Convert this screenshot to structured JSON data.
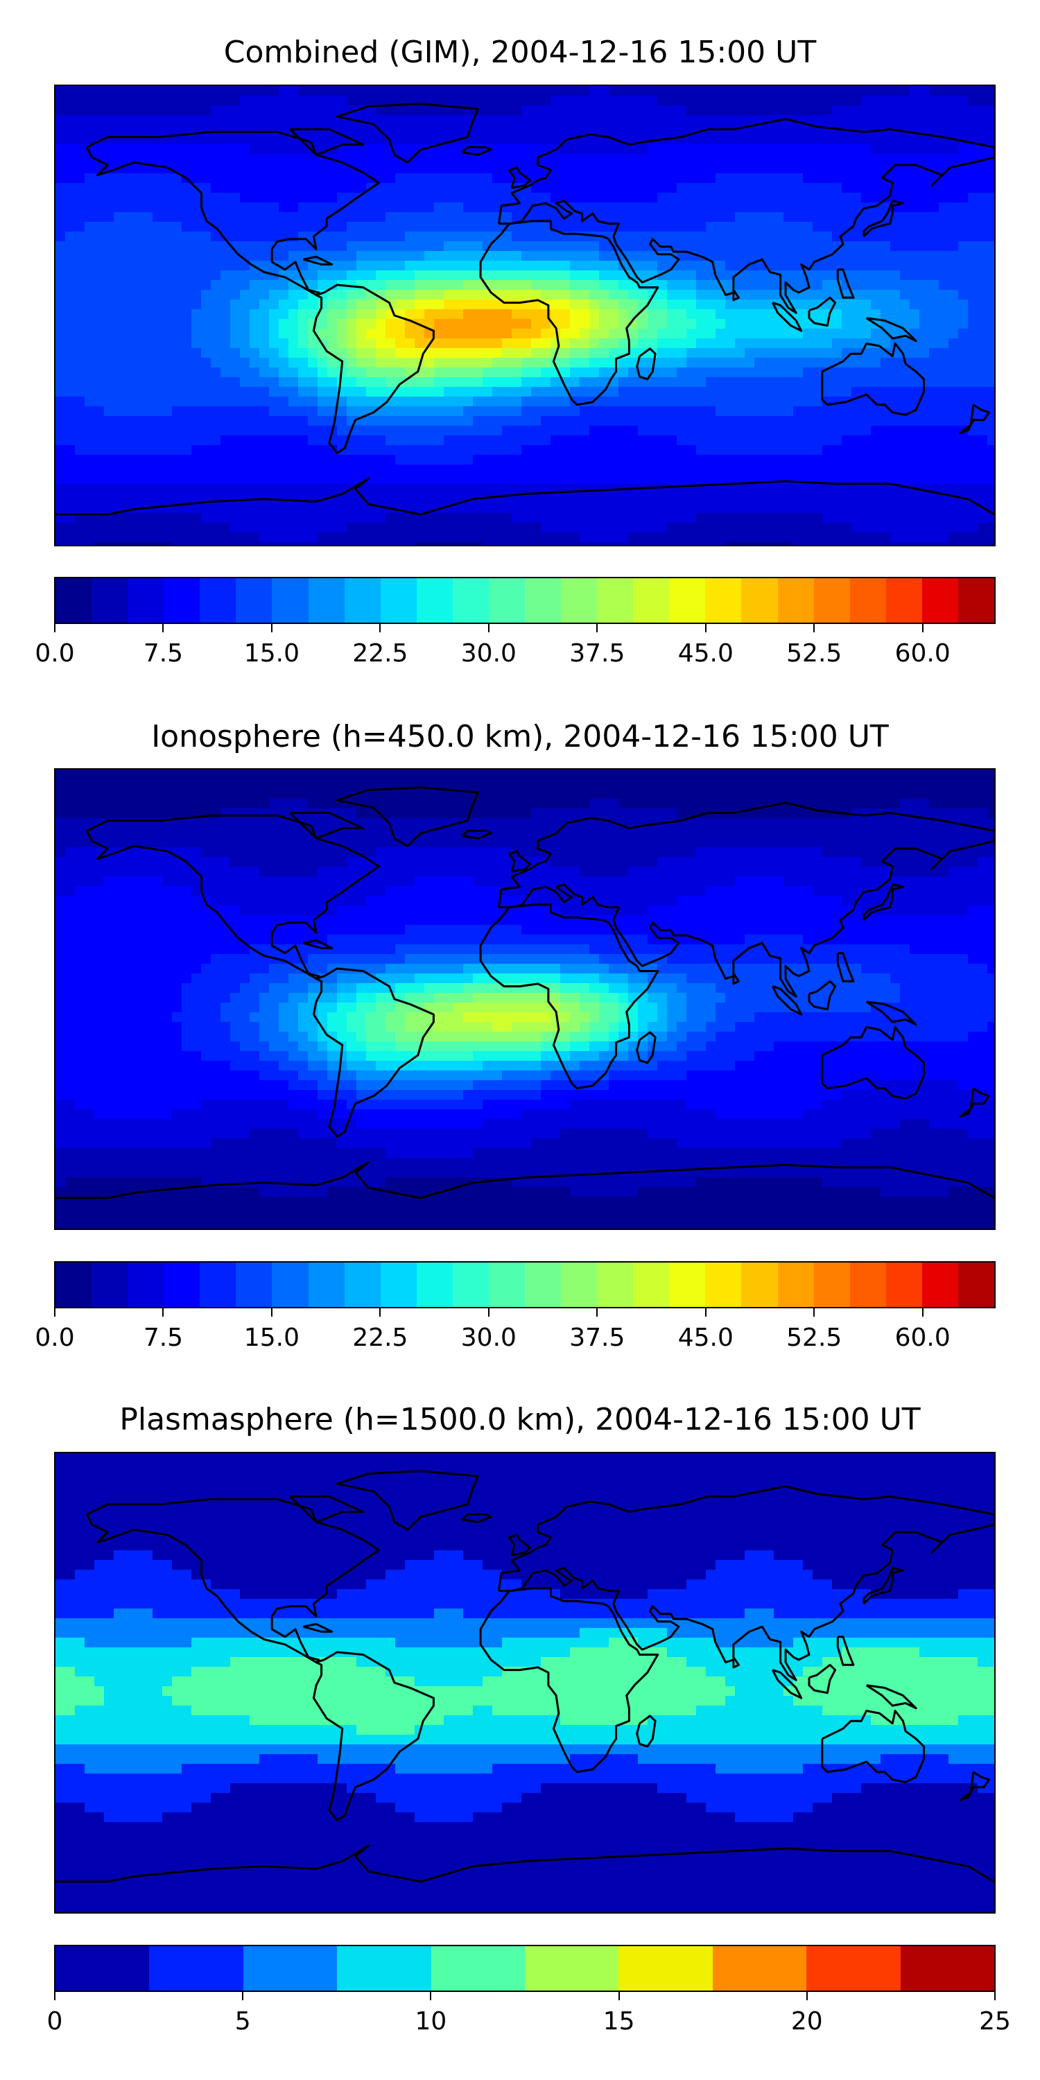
{
  "chart_data": [
    {
      "type": "heatmap",
      "title": "Combined (GIM), 2004-12-16 15:00 UT",
      "description_values": {
        "max_region": "South Atlantic / Brazil-Africa (approx 45-50)",
        "min_region": "high latitudes (approx 2.5-7.5)"
      },
      "colorbar": {
        "levels": 26,
        "vmin": 0.0,
        "vmax": 65.0,
        "ticks": [
          0.0,
          7.5,
          15.0,
          22.5,
          30.0,
          37.5,
          45.0,
          52.5,
          60.0
        ],
        "tick_labels": [
          "0.0",
          "7.5",
          "15.0",
          "22.5",
          "30.0",
          "37.5",
          "45.0",
          "52.5",
          "60.0"
        ],
        "colors": [
          "#00008f",
          "#0000b5",
          "#0000dc",
          "#0000ff",
          "#0022ff",
          "#0046ff",
          "#006bff",
          "#008fff",
          "#00b3ff",
          "#00d7ff",
          "#0ff8e7",
          "#2fffcf",
          "#4fffaf",
          "#70ff8f",
          "#8fff70",
          "#afff4f",
          "#cfff2f",
          "#efff0f",
          "#ffe600",
          "#ffc400",
          "#ffa200",
          "#ff8000",
          "#ff5e00",
          "#ff3c00",
          "#e60000",
          "#b30000"
        ]
      }
    },
    {
      "type": "heatmap",
      "title": "Ionosphere  (h=450.0 km), 2004-12-16 15:00 UT",
      "description_values": {
        "max_region": "South Atlantic / Africa (approx 37.5-42.5)",
        "min_region": "polar regions (approx 2.5-5.0)"
      },
      "colorbar": {
        "levels": 26,
        "vmin": 0.0,
        "vmax": 65.0,
        "ticks": [
          0.0,
          7.5,
          15.0,
          22.5,
          30.0,
          37.5,
          45.0,
          52.5,
          60.0
        ],
        "tick_labels": [
          "0.0",
          "7.5",
          "15.0",
          "22.5",
          "30.0",
          "37.5",
          "45.0",
          "52.5",
          "60.0"
        ],
        "colors": [
          "#00008f",
          "#0000b5",
          "#0000dc",
          "#0000ff",
          "#0022ff",
          "#0046ff",
          "#006bff",
          "#008fff",
          "#00b3ff",
          "#00d7ff",
          "#0ff8e7",
          "#2fffcf",
          "#4fffaf",
          "#70ff8f",
          "#8fff70",
          "#afff4f",
          "#cfff2f",
          "#efff0f",
          "#ffe600",
          "#ffc400",
          "#ffa200",
          "#ff8000",
          "#ff5e00",
          "#ff3c00",
          "#e60000",
          "#b30000"
        ]
      }
    },
    {
      "type": "heatmap",
      "title": "Plasmasphere (h=1500.0 km), 2004-12-16 15:00 UT",
      "description_values": {
        "max_region": "low latitudes (approx 10-12.5)",
        "min_region": "high latitudes (approx 0-2.5)"
      },
      "colorbar": {
        "levels": 10,
        "vmin": 0,
        "vmax": 25,
        "ticks": [
          0,
          5,
          10,
          15,
          20,
          25
        ],
        "tick_labels": [
          "0",
          "5",
          "10",
          "15",
          "20",
          "25"
        ],
        "colors": [
          "#0000b0",
          "#0022ff",
          "#0080ff",
          "#00e0f0",
          "#50ffa8",
          "#a8ff50",
          "#f0f000",
          "#ff8c00",
          "#ff3c00",
          "#b30000"
        ]
      }
    }
  ]
}
